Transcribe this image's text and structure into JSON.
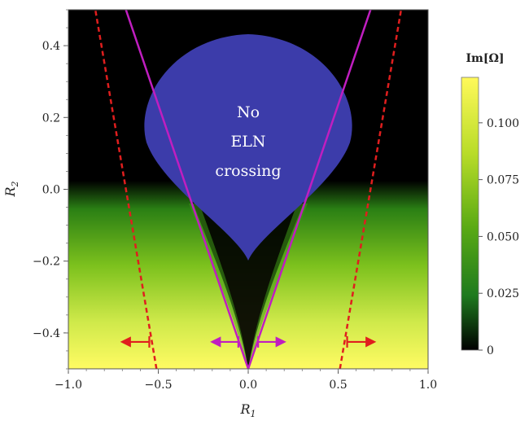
{
  "chart_data": {
    "type": "heatmap",
    "title": "",
    "xlabel": "R",
    "xlabel_sub": "1",
    "ylabel": "R",
    "ylabel_sub": "2",
    "xlim": [
      -1.0,
      1.0
    ],
    "ylim": [
      -0.5,
      0.5
    ],
    "x_ticks": [
      -1.0,
      -0.5,
      0.0,
      0.5,
      1.0
    ],
    "x_tick_labels": [
      "−1.0",
      "−0.5",
      "0.0",
      "0.5",
      "1.0"
    ],
    "y_ticks": [
      -0.4,
      -0.2,
      0.0,
      0.2,
      0.4
    ],
    "y_tick_labels": [
      "−0.4",
      "−0.2",
      "0.0",
      "0.2",
      "0.4"
    ],
    "colorbar": {
      "title": "Im[Ω]",
      "min": 0,
      "max": 0.12,
      "ticks": [
        0,
        0.025,
        0.05,
        0.075,
        0.1
      ],
      "tick_labels": [
        "0",
        "0.025",
        "0.050",
        "0.075",
        "0.100"
      ],
      "colors": [
        "#000000",
        "#1e7a1e",
        "#5aaa14",
        "#b8dc28",
        "#fff95a"
      ]
    },
    "region_annotation": {
      "lines": [
        "No",
        "ELN",
        "crossing"
      ],
      "color": "#3c3caa"
    },
    "lines": [
      {
        "style": "solid",
        "color": "#c01ec0",
        "segments": [
          [
            [
              0.0,
              -0.5
            ],
            [
              -0.68,
              0.5
            ]
          ],
          [
            [
              0.0,
              -0.5
            ],
            [
              0.68,
              0.5
            ]
          ]
        ]
      },
      {
        "style": "dashed",
        "color": "#e01e1e",
        "segments": [
          [
            [
              -0.51,
              -0.5
            ],
            [
              -0.85,
              0.5
            ]
          ],
          [
            [
              0.51,
              -0.5
            ],
            [
              0.85,
              0.5
            ]
          ]
        ]
      }
    ],
    "arrows": [
      {
        "color": "#e01e1e",
        "y": -0.425,
        "x_from": -0.55,
        "x_to": -0.7
      },
      {
        "color": "#e01e1e",
        "y": -0.425,
        "x_from": 0.55,
        "x_to": 0.7
      },
      {
        "color": "#c01ec0",
        "y": -0.425,
        "x_from": -0.055,
        "x_to": -0.2
      },
      {
        "color": "#c01ec0",
        "y": -0.425,
        "x_from": 0.055,
        "x_to": 0.2
      }
    ]
  }
}
